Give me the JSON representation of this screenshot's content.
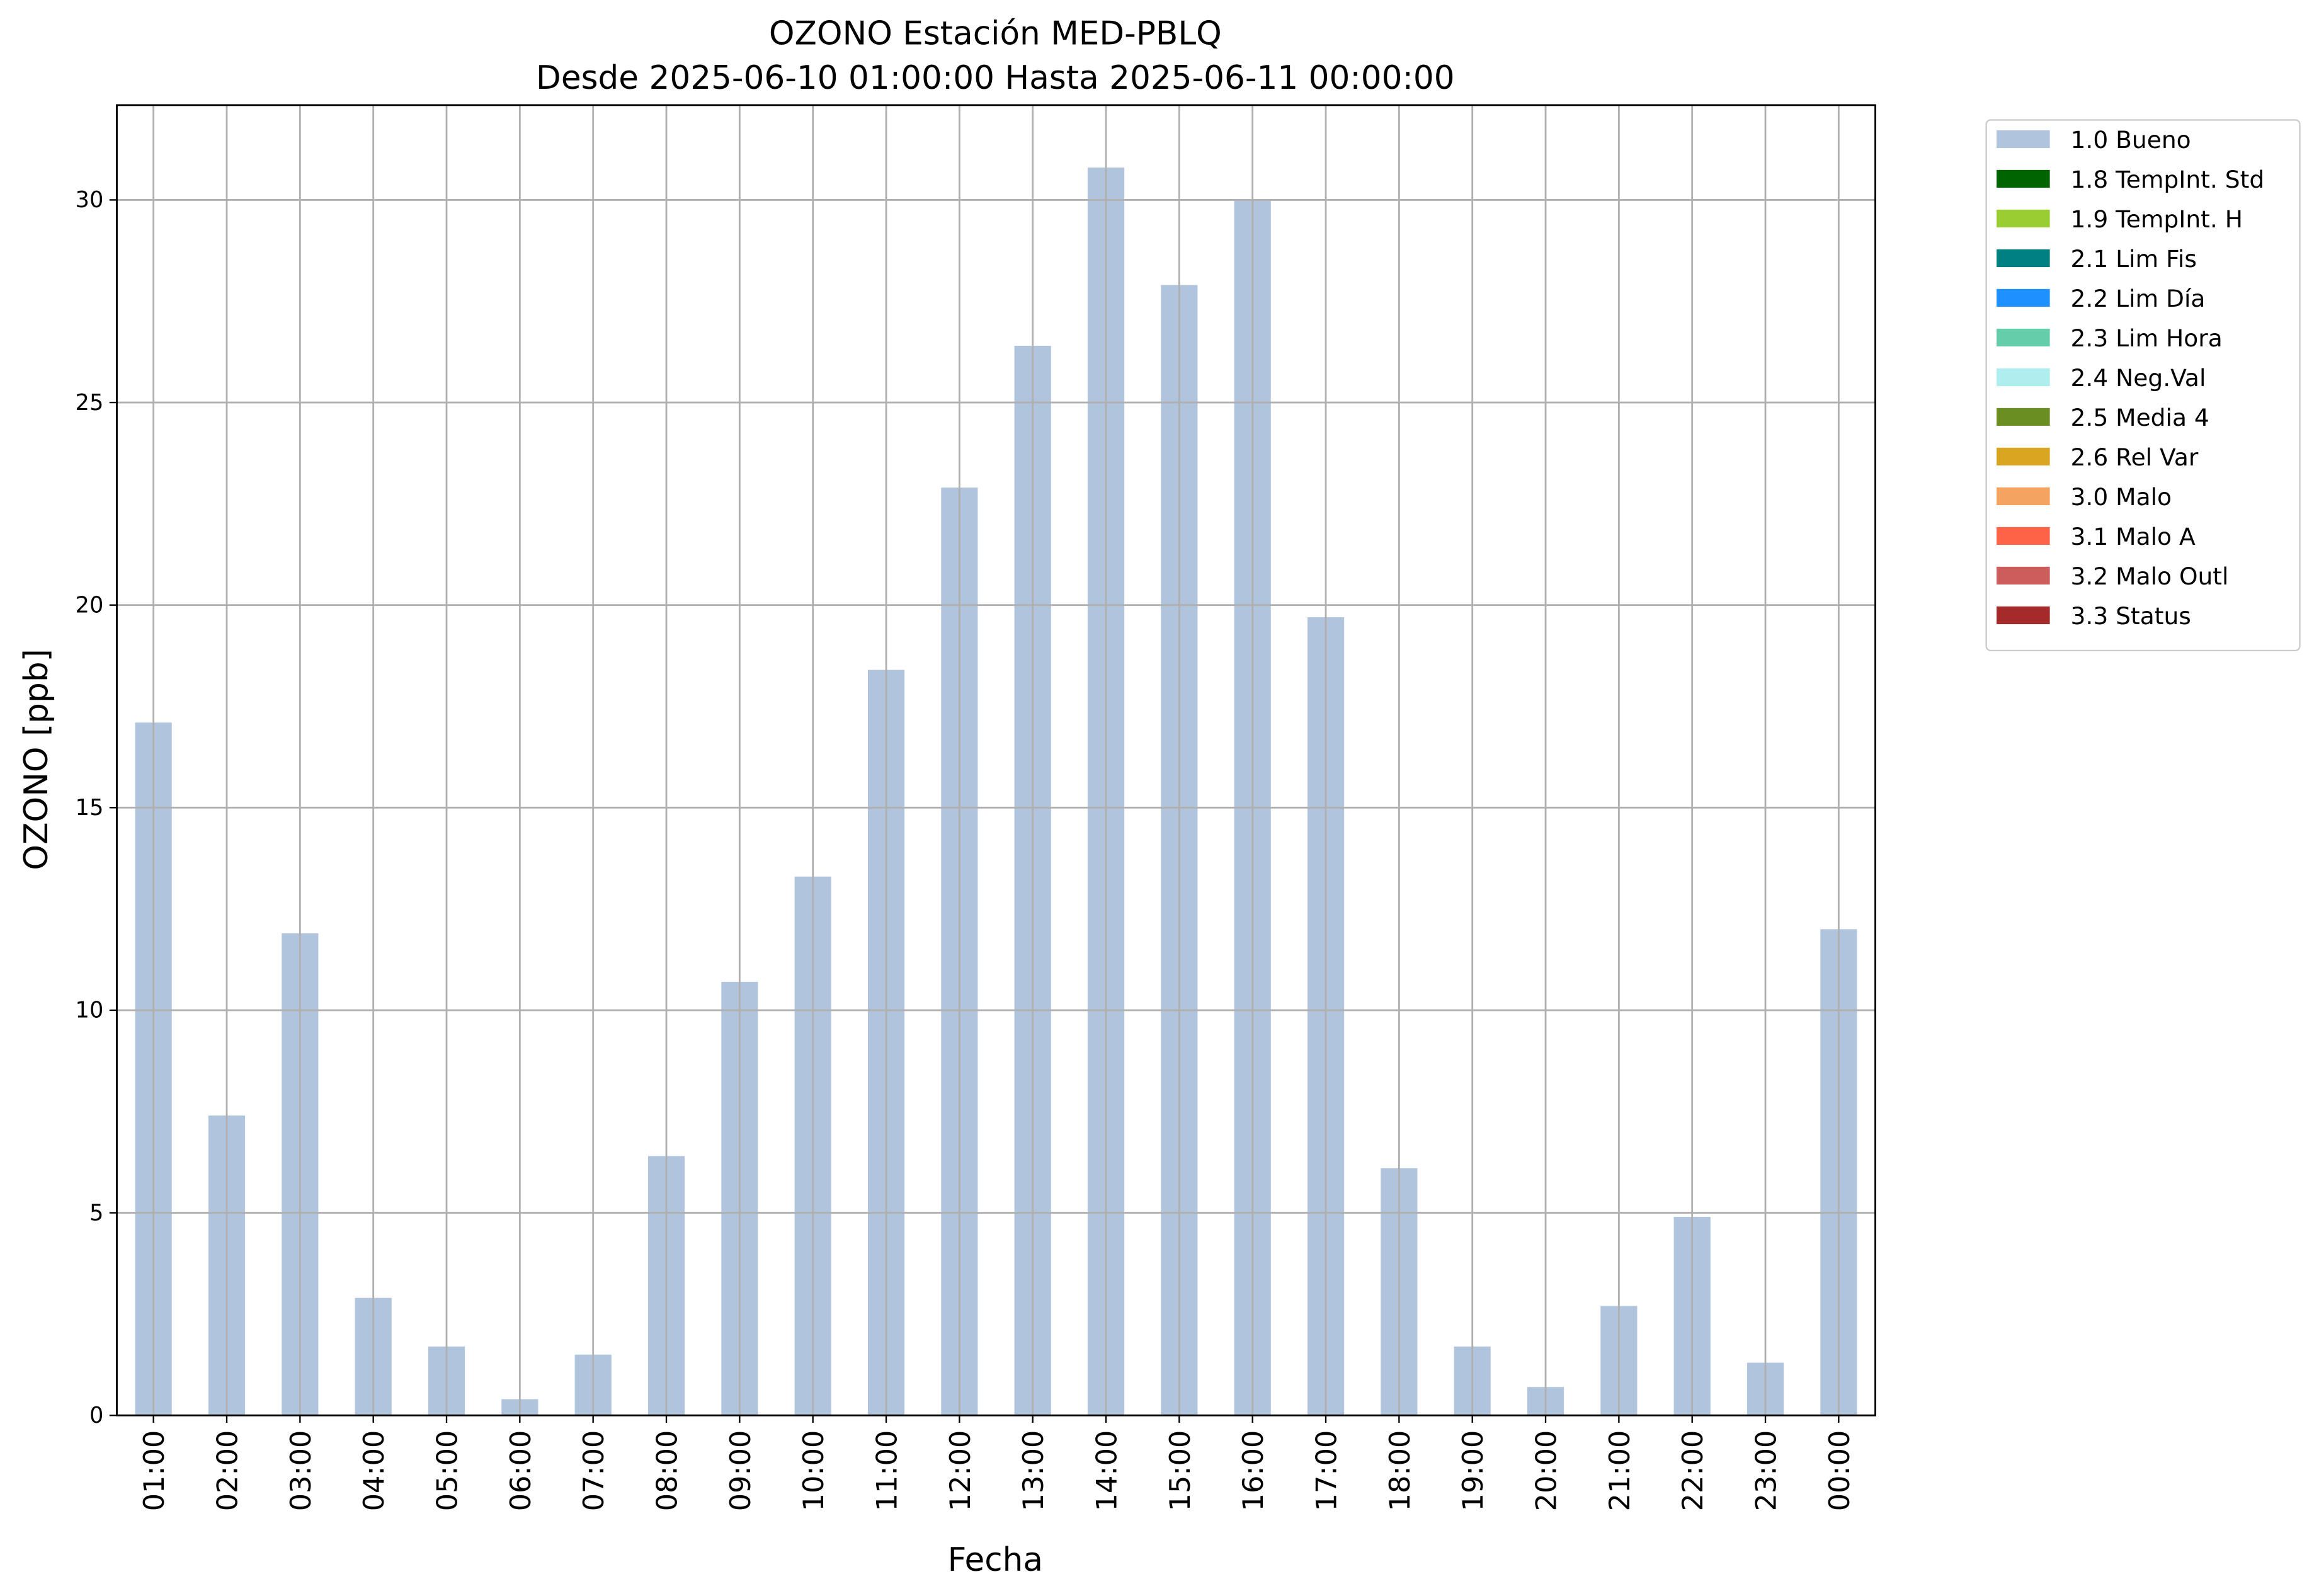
{
  "chart_data": {
    "type": "bar",
    "title": "OZONO Estación MED-PBLQ",
    "subtitle": "Desde 2025-06-10 01:00:00 Hasta 2025-06-11 00:00:00",
    "x_label": "Fecha",
    "y_label": "OZONO [ppb]",
    "categories": [
      "01:00",
      "02:00",
      "03:00",
      "04:00",
      "05:00",
      "06:00",
      "07:00",
      "08:00",
      "09:00",
      "10:00",
      "11:00",
      "12:00",
      "13:00",
      "14:00",
      "15:00",
      "16:00",
      "17:00",
      "18:00",
      "19:00",
      "20:00",
      "21:00",
      "22:00",
      "23:00",
      "00:00"
    ],
    "series": [
      {
        "name": "1.0 Bueno",
        "color": "#b0c4de",
        "values": [
          17.1,
          7.4,
          11.9,
          2.9,
          1.7,
          0.4,
          1.5,
          6.4,
          10.7,
          13.3,
          18.4,
          22.9,
          26.4,
          30.8,
          27.9,
          30.0,
          19.7,
          6.1,
          1.7,
          0.7,
          2.7,
          4.9,
          1.3,
          12.0
        ]
      },
      {
        "name": "1.8 TempInt. Std",
        "color": "#006400"
      },
      {
        "name": "1.9 TempInt. H",
        "color": "#9acd32"
      },
      {
        "name": "2.1 Lim Fis",
        "color": "#008080"
      },
      {
        "name": "2.2 Lim Día",
        "color": "#1e90ff"
      },
      {
        "name": "2.3 Lim Hora",
        "color": "#66cdaa"
      },
      {
        "name": "2.4 Neg.Val",
        "color": "#afeeee"
      },
      {
        "name": "2.5 Media 4",
        "color": "#6b8e23"
      },
      {
        "name": "2.6 Rel Var",
        "color": "#daa520"
      },
      {
        "name": "3.0 Malo",
        "color": "#f4a460"
      },
      {
        "name": "3.1 Malo A",
        "color": "#ff6347"
      },
      {
        "name": "3.2 Malo Outl",
        "color": "#cd5c5c"
      },
      {
        "name": "3.3 Status",
        "color": "#a52a2a"
      }
    ],
    "ylim": [
      0,
      32.34
    ],
    "yticks": [
      0,
      5,
      10,
      15,
      20,
      25,
      30
    ],
    "grid": true,
    "legend": "outside upper right"
  }
}
